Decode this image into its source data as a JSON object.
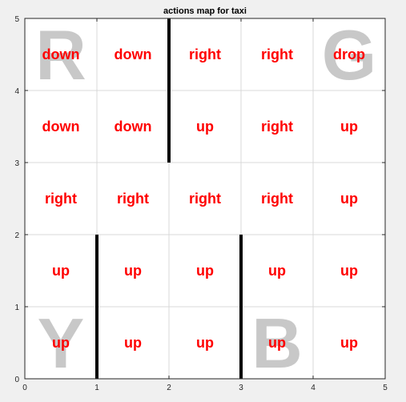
{
  "chart_data": {
    "type": "heatmap",
    "title": "actions map for taxi",
    "xlim": [
      0,
      5
    ],
    "ylim": [
      0,
      5
    ],
    "xticks": [
      "0",
      "1",
      "2",
      "3",
      "4",
      "5"
    ],
    "yticks": [
      "0",
      "1",
      "2",
      "3",
      "4",
      "5"
    ],
    "grid": true,
    "rows_top_to_bottom": [
      [
        "down",
        "down",
        "right",
        "right",
        "drop"
      ],
      [
        "down",
        "down",
        "up",
        "right",
        "up"
      ],
      [
        "right",
        "right",
        "right",
        "right",
        "up"
      ],
      [
        "up",
        "up",
        "up",
        "up",
        "up"
      ],
      [
        "up",
        "up",
        "up",
        "up",
        "up"
      ]
    ],
    "landmarks": [
      {
        "letter": "R",
        "x": 0.5,
        "y": 4.5
      },
      {
        "letter": "G",
        "x": 4.5,
        "y": 4.5
      },
      {
        "letter": "Y",
        "x": 0.5,
        "y": 0.5
      },
      {
        "letter": "B",
        "x": 3.5,
        "y": 0.5
      }
    ],
    "walls": [
      {
        "x": 2,
        "y0": 3,
        "y1": 5
      },
      {
        "x": 1,
        "y0": 0,
        "y1": 2
      },
      {
        "x": 3,
        "y0": 0,
        "y1": 2
      }
    ],
    "colors": {
      "action_text": "#ff0000",
      "landmark_letter": "#c8c8c8",
      "wall": "#000000",
      "grid": "#d9d9d9",
      "plot_background": "#ffffff",
      "figure_background": "#f0f0f0"
    }
  }
}
